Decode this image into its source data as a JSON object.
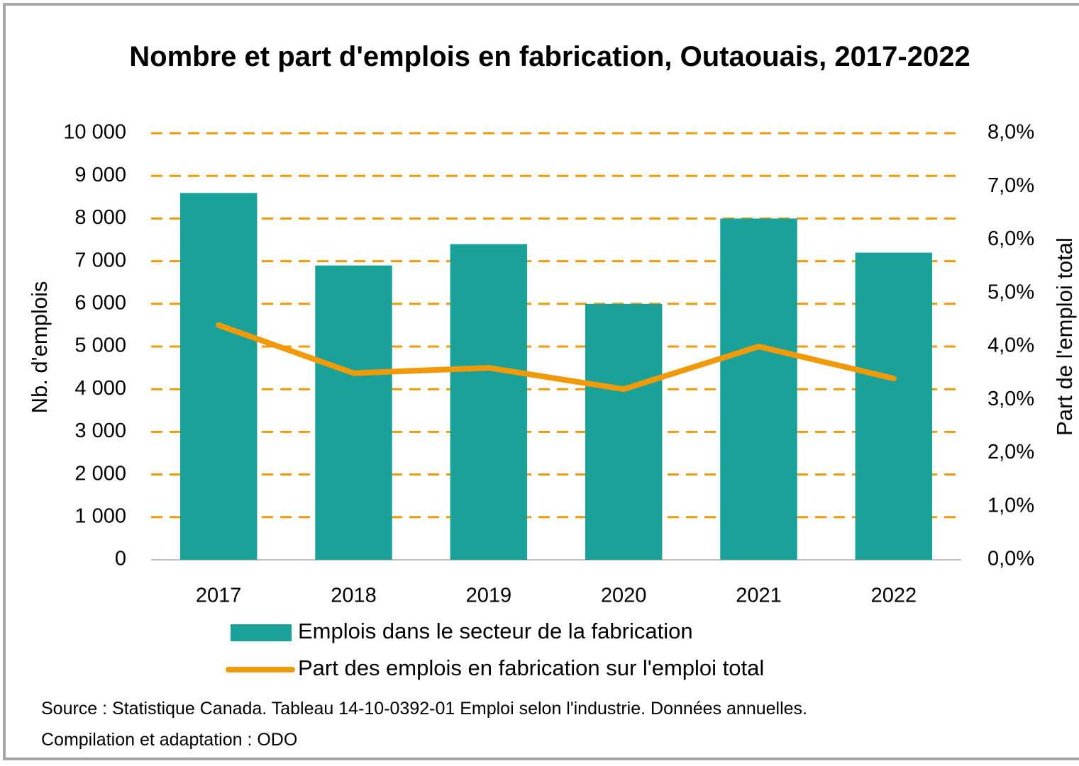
{
  "chart_data": {
    "type": "bar_line",
    "title": "Nombre et part d'emplois en fabrication, Outaouais, 2017-2022",
    "categories": [
      "2017",
      "2018",
      "2019",
      "2020",
      "2021",
      "2022"
    ],
    "series": [
      {
        "name": "Emplois dans le secteur de la fabrication",
        "type": "bar",
        "color": "#1aa29a",
        "values": [
          8600,
          6900,
          7400,
          6000,
          8000,
          7200
        ]
      },
      {
        "name": "Part des emplois en fabrication sur l'emploi total",
        "type": "line",
        "color": "#f09a0a",
        "axis": "y2",
        "values": [
          4.4,
          3.5,
          3.6,
          3.2,
          4.0,
          3.4
        ]
      }
    ],
    "ylabel": "Nb. d'emplois",
    "y2label": "Part de l'emploi total",
    "ylim": [
      0,
      10000
    ],
    "yticks": [
      0,
      {
        "value": 1000,
        "label": "1 000"
      },
      {
        "value": 2000,
        "label": "2 000"
      },
      {
        "value": 3000,
        "label": "3 000"
      },
      {
        "value": 4000,
        "label": "4 000"
      },
      {
        "value": 5000,
        "label": "5 000"
      },
      {
        "value": 6000,
        "label": "6 000"
      },
      {
        "value": 7000,
        "label": "7 000"
      },
      {
        "value": 8000,
        "label": "8 000"
      },
      {
        "value": 9000,
        "label": "9 000"
      },
      {
        "value": 10000,
        "label": "10 000"
      }
    ],
    "y2lim": [
      0,
      8
    ],
    "y2ticks": [
      {
        "value": 0,
        "label": "0,0%"
      },
      {
        "value": 1,
        "label": "1,0%"
      },
      {
        "value": 2,
        "label": "2,0%"
      },
      {
        "value": 3,
        "label": "3,0%"
      },
      {
        "value": 4,
        "label": "4,0%"
      },
      {
        "value": 5,
        "label": "5,0%"
      },
      {
        "value": 6,
        "label": "6,0%"
      },
      {
        "value": 7,
        "label": "7,0%"
      },
      {
        "value": 8,
        "label": "8,0%"
      }
    ],
    "grid": true,
    "legend": "bottom",
    "source": "Source : Statistique Canada. Tableau 14-10-0392-01 Emploi selon l'industrie. Données annuelles.",
    "credit": "Compilation et adaptation : ODO"
  }
}
